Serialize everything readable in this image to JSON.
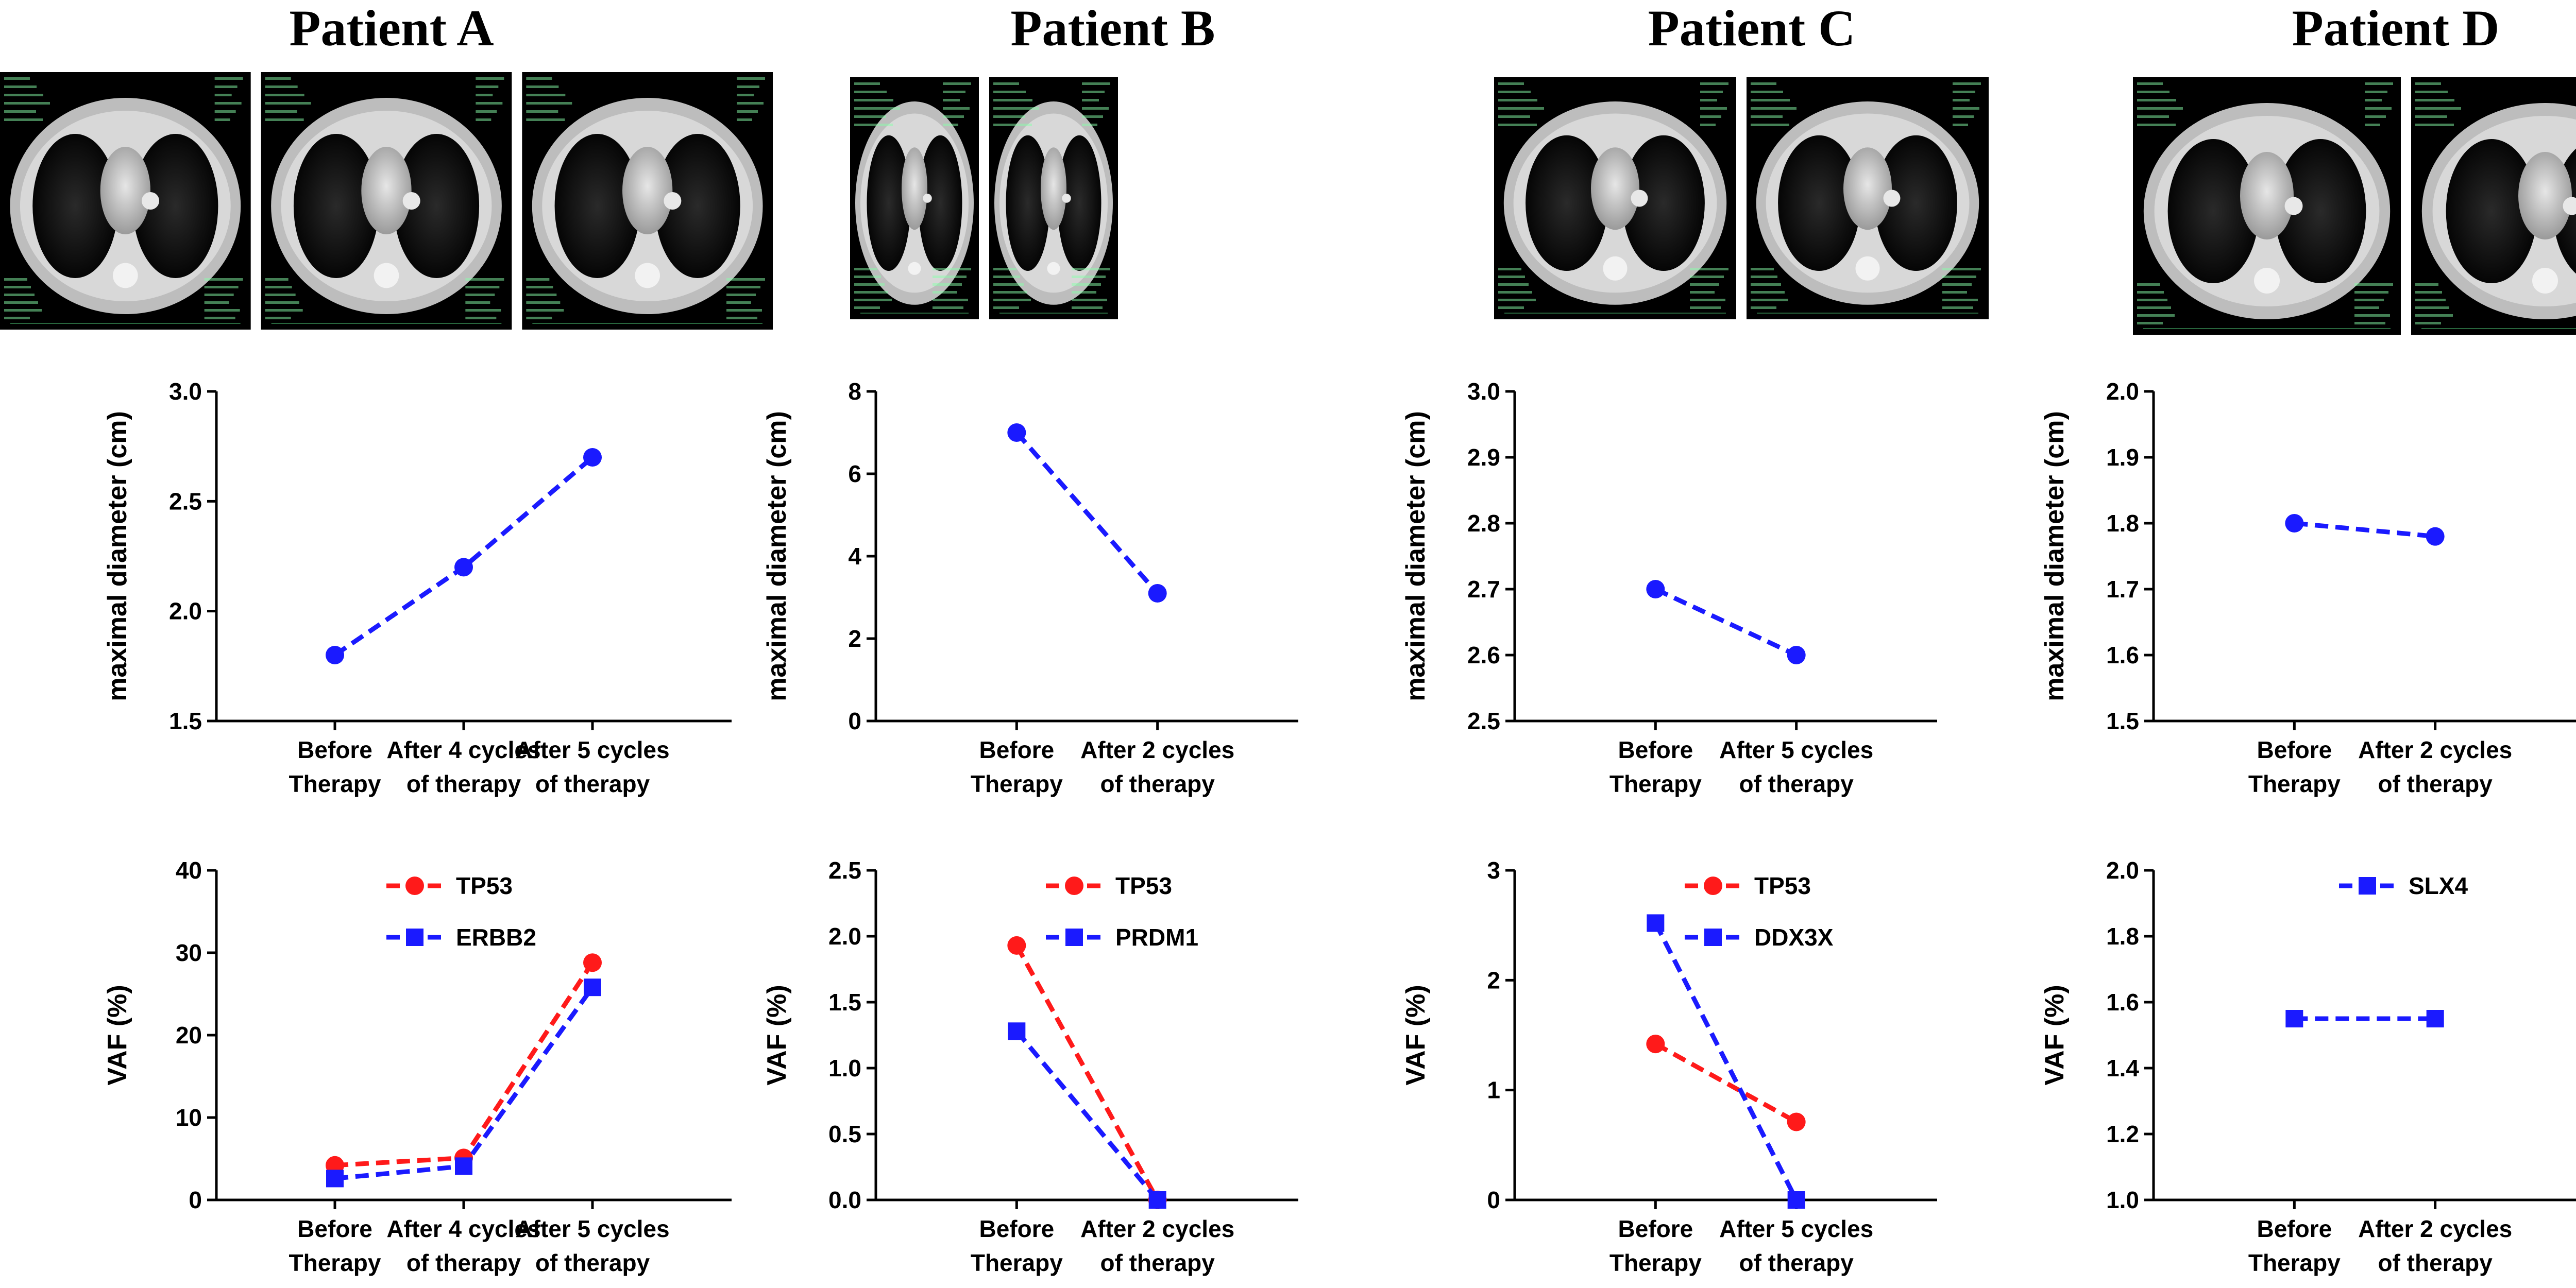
{
  "colors": {
    "red": "#ff1a1a",
    "blue": "#1a1aff"
  },
  "chart_data": [
    {
      "panel": "A",
      "title": "Patient A",
      "ct_slices": 3,
      "diameter": {
        "type": "line",
        "ylabel": "maximal diameter (cm)",
        "ylim": [
          1.5,
          3.0
        ],
        "yticks": [
          "1.5",
          "2.0",
          "2.5",
          "3.0"
        ],
        "categories": [
          [
            "Before",
            "Therapy"
          ],
          [
            "After 4 cycles",
            "of therapy"
          ],
          [
            "After 5 cycles",
            "of therapy"
          ]
        ],
        "series": [
          {
            "name": "diameter",
            "color": "blue",
            "marker": "circle",
            "values": [
              1.8,
              2.2,
              2.7
            ]
          }
        ]
      },
      "vaf": {
        "type": "line",
        "ylabel": "VAF (%)",
        "ylim": [
          0,
          40
        ],
        "yticks": [
          "0",
          "10",
          "20",
          "30",
          "40"
        ],
        "categories": [
          [
            "Before",
            "Therapy"
          ],
          [
            "After 4 cycles",
            "of therapy"
          ],
          [
            "After 5 cycles",
            "of therapy"
          ]
        ],
        "series": [
          {
            "name": "TP53",
            "color": "red",
            "marker": "circle",
            "values": [
              4.2,
              5.1,
              28.8
            ]
          },
          {
            "name": "ERBB2",
            "color": "blue",
            "marker": "square",
            "values": [
              2.6,
              4.1,
              25.8
            ]
          }
        ]
      }
    },
    {
      "panel": "B",
      "title": "Patient B",
      "ct_slices": 2,
      "diameter": {
        "type": "line",
        "ylabel": "maximal diameter (cm)",
        "ylim": [
          0,
          8
        ],
        "yticks": [
          "0",
          "2",
          "4",
          "6",
          "8"
        ],
        "categories": [
          [
            "Before",
            "Therapy"
          ],
          [
            "After 2 cycles",
            "of therapy"
          ]
        ],
        "series": [
          {
            "name": "diameter",
            "color": "blue",
            "marker": "circle",
            "values": [
              7.0,
              3.1
            ]
          }
        ]
      },
      "vaf": {
        "type": "line",
        "ylabel": "VAF (%)",
        "ylim": [
          0,
          2.5
        ],
        "yticks": [
          "0.0",
          "0.5",
          "1.0",
          "1.5",
          "2.0",
          "2.5"
        ],
        "categories": [
          [
            "Before",
            "Therapy"
          ],
          [
            "After 2 cycles",
            "of therapy"
          ]
        ],
        "series": [
          {
            "name": "TP53",
            "color": "red",
            "marker": "circle",
            "values": [
              1.93,
              0.0
            ]
          },
          {
            "name": "PRDM1",
            "color": "blue",
            "marker": "square",
            "values": [
              1.28,
              0.0
            ]
          }
        ]
      }
    },
    {
      "panel": "C",
      "title": "Patient C",
      "ct_slices": 2,
      "diameter": {
        "type": "line",
        "ylabel": "maximal diameter (cm)",
        "ylim": [
          2.5,
          3.0
        ],
        "yticks": [
          "2.5",
          "2.6",
          "2.7",
          "2.8",
          "2.9",
          "3.0"
        ],
        "categories": [
          [
            "Before",
            "Therapy"
          ],
          [
            "After 5 cycles",
            "of therapy"
          ]
        ],
        "series": [
          {
            "name": "diameter",
            "color": "blue",
            "marker": "circle",
            "values": [
              2.7,
              2.6
            ]
          }
        ]
      },
      "vaf": {
        "type": "line",
        "ylabel": "VAF (%)",
        "ylim": [
          0,
          3
        ],
        "yticks": [
          "0",
          "1",
          "2",
          "3"
        ],
        "categories": [
          [
            "Before",
            "Therapy"
          ],
          [
            "After 5 cycles",
            "of therapy"
          ]
        ],
        "series": [
          {
            "name": "TP53",
            "color": "red",
            "marker": "circle",
            "values": [
              1.42,
              0.71
            ]
          },
          {
            "name": "DDX3X",
            "color": "blue",
            "marker": "square",
            "values": [
              2.52,
              0.0
            ]
          }
        ]
      }
    },
    {
      "panel": "D",
      "title": "Patient D",
      "ct_slices": 2,
      "diameter": {
        "type": "line",
        "ylabel": "maximal diameter (cm)",
        "ylim": [
          1.5,
          2.0
        ],
        "yticks": [
          "1.5",
          "1.6",
          "1.7",
          "1.8",
          "1.9",
          "2.0"
        ],
        "categories": [
          [
            "Before",
            "Therapy"
          ],
          [
            "After 2 cycles",
            "of therapy"
          ]
        ],
        "series": [
          {
            "name": "diameter",
            "color": "blue",
            "marker": "circle",
            "values": [
              1.8,
              1.78
            ]
          }
        ]
      },
      "vaf": {
        "type": "line",
        "ylabel": "VAF (%)",
        "ylim": [
          1.0,
          2.0
        ],
        "yticks": [
          "1.0",
          "1.2",
          "1.4",
          "1.6",
          "1.8",
          "2.0"
        ],
        "categories": [
          [
            "Before",
            "Therapy"
          ],
          [
            "After 2 cycles",
            "of therapy"
          ]
        ],
        "series": [
          {
            "name": "SLX4",
            "color": "blue",
            "marker": "square",
            "values": [
              1.55,
              1.55
            ]
          }
        ]
      }
    }
  ]
}
